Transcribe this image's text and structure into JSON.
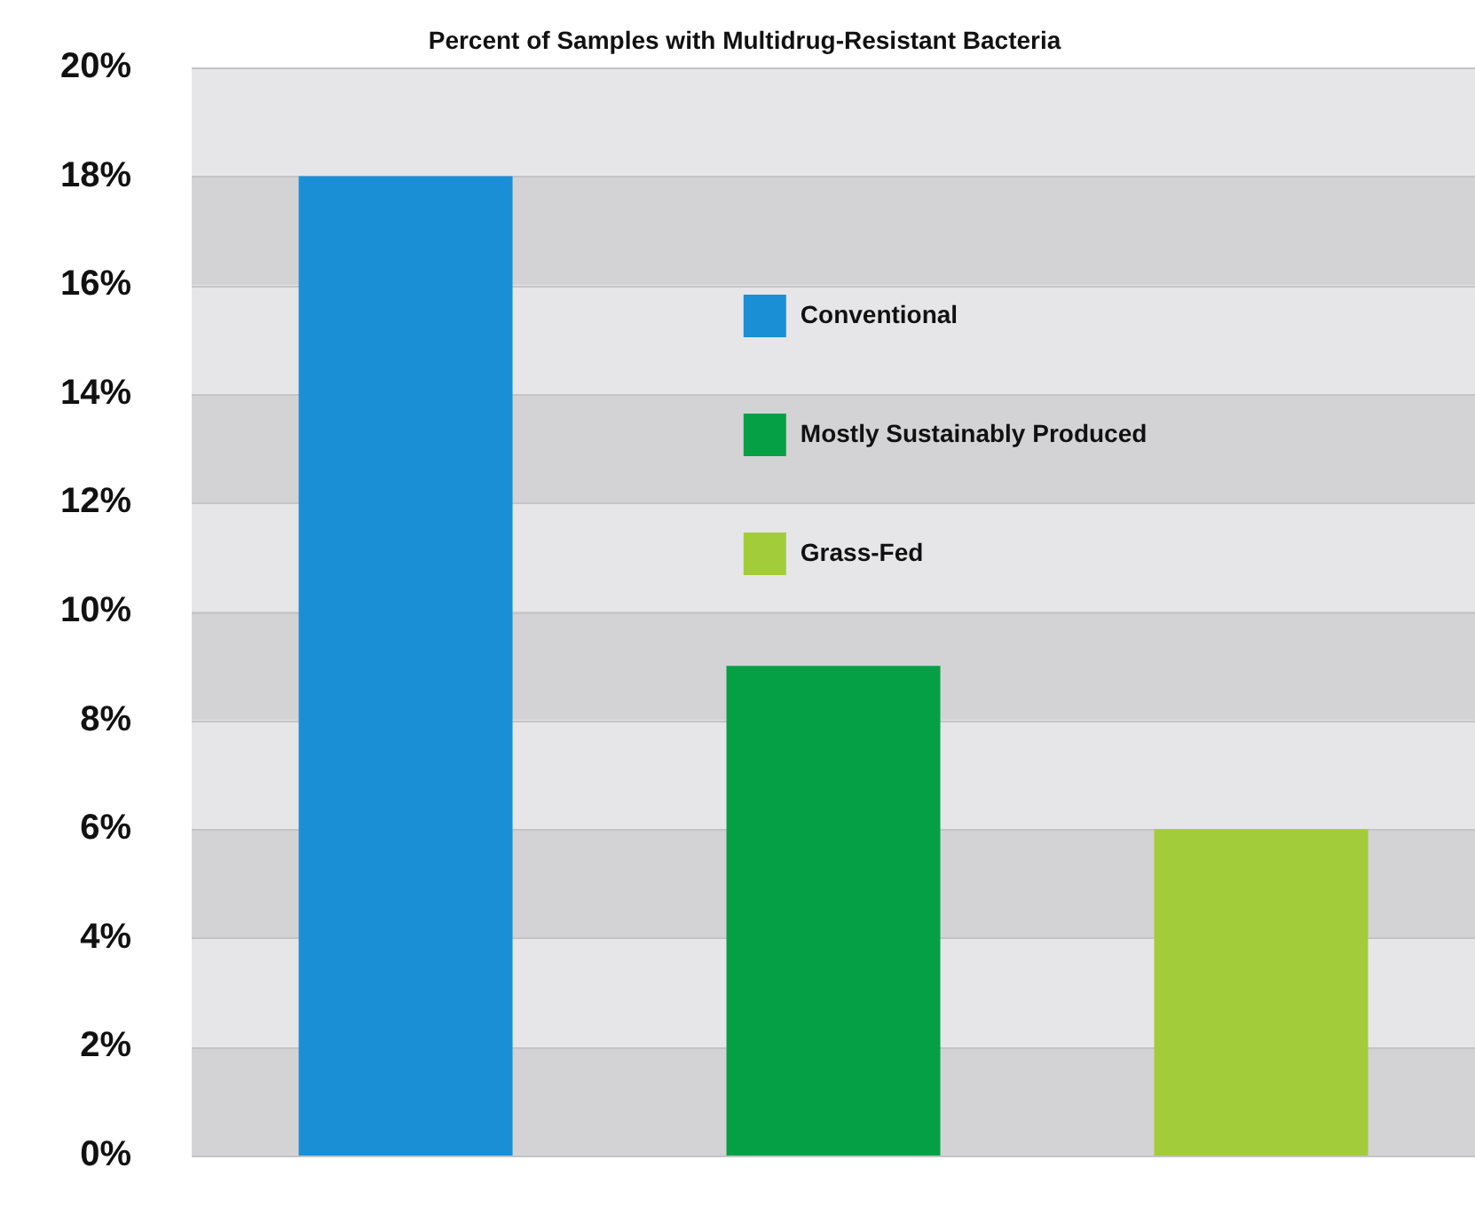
{
  "chart_data": {
    "type": "bar",
    "title": "Percent of Samples with Multidrug-Resistant Bacteria",
    "categories": [
      null
    ],
    "series": [
      {
        "name": "Conventional",
        "color": "#1a8fd6",
        "values": [
          18
        ]
      },
      {
        "name": "Mostly Sustainably Produced",
        "color": "#05a045",
        "values": [
          9
        ]
      },
      {
        "name": "Grass-Fed",
        "color": "#a3cc3a",
        "values": [
          6
        ]
      }
    ],
    "ylim": [
      0,
      20
    ],
    "yticks": [
      {
        "value": 0,
        "label": "0%"
      },
      {
        "value": 2,
        "label": "2%"
      },
      {
        "value": 4,
        "label": "4%"
      },
      {
        "value": 6,
        "label": "6%"
      },
      {
        "value": 8,
        "label": "8%"
      },
      {
        "value": 10,
        "label": "10%"
      },
      {
        "value": 12,
        "label": "12%"
      },
      {
        "value": 14,
        "label": "14%"
      },
      {
        "value": 16,
        "label": "16%"
      },
      {
        "value": 18,
        "label": "18%"
      },
      {
        "value": 20,
        "label": "20%"
      }
    ],
    "grid": true,
    "legend": "top right"
  }
}
